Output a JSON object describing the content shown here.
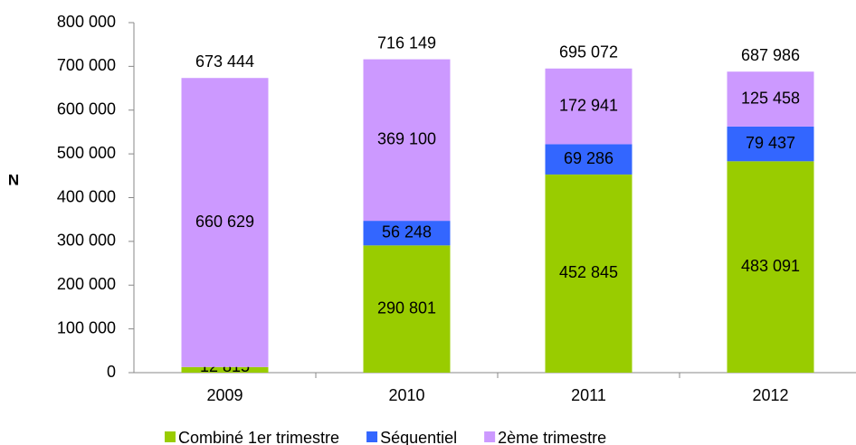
{
  "chart_data": {
    "type": "stacked_bar",
    "y_label": "N",
    "categories": [
      "2009",
      "2010",
      "2011",
      "2012"
    ],
    "series": [
      {
        "name": "Combiné 1er trimestre",
        "color": "#99cc00",
        "values": [
          12815,
          290801,
          452845,
          483091
        ],
        "value_labels": [
          "12 815",
          "290 801",
          "452 845",
          "483 091"
        ]
      },
      {
        "name": "Séquentiel",
        "color": "#3366ff",
        "values": [
          null,
          56248,
          69286,
          79437
        ],
        "value_labels": [
          null,
          "56 248",
          "69 286",
          "79 437"
        ]
      },
      {
        "name": "2ème trimestre",
        "color": "#cc99ff",
        "values": [
          660629,
          369100,
          172941,
          125458
        ],
        "value_labels": [
          "660 629",
          "369 100",
          "172 941",
          "125 458"
        ]
      }
    ],
    "totals": [
      673444,
      716149,
      695072,
      687986
    ],
    "total_labels": [
      "673 444",
      "716 149",
      "695 072",
      "687 986"
    ],
    "ylim": [
      0,
      800000
    ],
    "yticks": [
      0,
      {
        "value": 100000,
        "label": "100 000"
      },
      {
        "value": 200000,
        "label": "200 000"
      },
      {
        "value": 300000,
        "label": "300 000"
      },
      {
        "value": 400000,
        "label": "400 000"
      },
      {
        "value": 500000,
        "label": "500 000"
      },
      {
        "value": 600000,
        "label": "600 000"
      },
      {
        "value": 700000,
        "label": "700 000"
      },
      {
        "value": 800000,
        "label": "800 000"
      }
    ],
    "legend": "bottom"
  }
}
